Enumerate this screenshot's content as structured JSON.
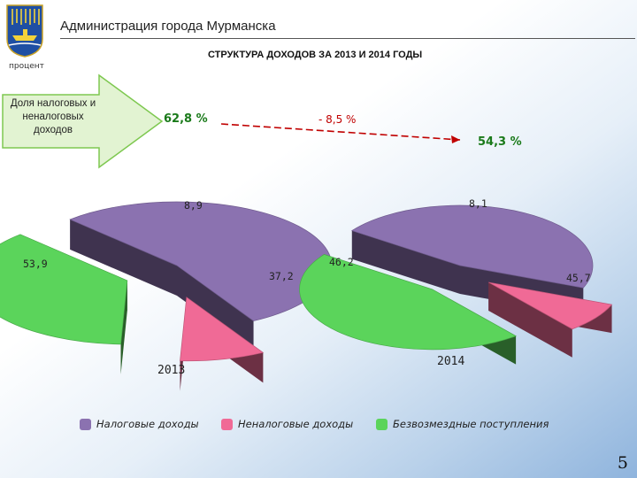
{
  "header": {
    "org_title": "Администрация города Мурманска",
    "chart_title": "СТРУКТУРА ДОХОДОВ ЗА 2013 И 2014 ГОДЫ",
    "unit_label": "процент",
    "page_number": "5"
  },
  "callout": {
    "text": "Доля налоговых и неналоговых доходов",
    "share_2013": "62,8 %",
    "change": "- 8,5 %",
    "share_2014": "54,3 %"
  },
  "colors": {
    "tax": "#8B72B0",
    "nontax": "#F06A96",
    "grants": "#5BD45B",
    "arrow_fill": "#E2F3D2",
    "arrow_stroke": "#7EC850",
    "trend_line": "#C00000"
  },
  "chart_data": [
    {
      "type": "pie",
      "title": "2013",
      "categories": [
        "Налоговые доходы",
        "Неналоговые доходы",
        "Безвозмездные поступления"
      ],
      "values": [
        53.9,
        8.9,
        37.2
      ],
      "labels": [
        "53,9",
        "8,9",
        "37,2"
      ],
      "style": "3d-exploded"
    },
    {
      "type": "pie",
      "title": "2014",
      "categories": [
        "Налоговые доходы",
        "Неналоговые доходы",
        "Безвозмездные поступления"
      ],
      "values": [
        46.2,
        8.1,
        45.7
      ],
      "labels": [
        "46,2",
        "8,1",
        "45,7"
      ],
      "style": "3d-exploded"
    }
  ],
  "legend": {
    "items": [
      "Налоговые доходы",
      "Неналоговые доходы",
      "Безвозмездные поступления"
    ],
    "placement": "bottom"
  }
}
